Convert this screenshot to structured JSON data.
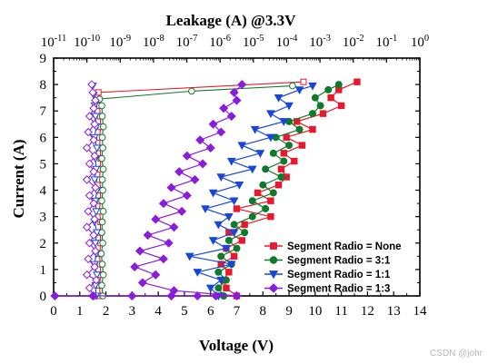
{
  "chart_data": {
    "type": "scatter",
    "top_axis_title": "Leakage (A) @3.3V",
    "top_axis_ticks": [
      {
        "exp": -11,
        "label": "10",
        "sup": "-11"
      },
      {
        "exp": -10,
        "label": "10",
        "sup": "-10"
      },
      {
        "exp": -9,
        "label": "10",
        "sup": "-9"
      },
      {
        "exp": -8,
        "label": "10",
        "sup": "-8"
      },
      {
        "exp": -7,
        "label": "10",
        "sup": "-7"
      },
      {
        "exp": -6,
        "label": "10",
        "sup": "-6"
      },
      {
        "exp": -5,
        "label": "10",
        "sup": "-5"
      },
      {
        "exp": -4,
        "label": "10",
        "sup": "-4"
      },
      {
        "exp": -3,
        "label": "10",
        "sup": "-3"
      },
      {
        "exp": -2,
        "label": "10",
        "sup": "-2"
      },
      {
        "exp": -1,
        "label": "10",
        "sup": "-1"
      },
      {
        "exp": 0,
        "label": "10",
        "sup": "0"
      }
    ],
    "top_axis_scale": "log",
    "top_xlim": [
      1e-11,
      1
    ],
    "xlabel": "Voltage (V)",
    "ylabel": "Current (A)",
    "xlim": [
      0,
      14
    ],
    "ylim": [
      0,
      9
    ],
    "xticks": [
      "0",
      "1",
      "2",
      "3",
      "4",
      "5",
      "6",
      "7",
      "8",
      "9",
      "10",
      "11",
      "12",
      "13",
      "14"
    ],
    "yticks": [
      "0",
      "1",
      "2",
      "3",
      "4",
      "5",
      "6",
      "7",
      "8",
      "9"
    ],
    "legend_position": "bottom-right",
    "series": [
      {
        "name": "Segment Radio = None",
        "color": "#e8192c",
        "marker": "square",
        "iv": [
          [
            7.0,
            0
          ],
          [
            6.6,
            0.3
          ],
          [
            6.5,
            0.6
          ],
          [
            6.7,
            0.9
          ],
          [
            6.4,
            1.2
          ],
          [
            6.9,
            1.5
          ],
          [
            6.6,
            1.8
          ],
          [
            7.2,
            2.1
          ],
          [
            6.7,
            2.4
          ],
          [
            7.3,
            2.7
          ],
          [
            8.3,
            3.0
          ],
          [
            7.0,
            3.3
          ],
          [
            8.3,
            3.6
          ],
          [
            7.8,
            3.9
          ],
          [
            8.6,
            4.2
          ],
          [
            8.9,
            4.5
          ],
          [
            8.7,
            4.8
          ],
          [
            9.2,
            5.1
          ],
          [
            8.8,
            5.4
          ],
          [
            9.5,
            5.7
          ],
          [
            8.9,
            6.0
          ],
          [
            9.9,
            6.3
          ],
          [
            9.3,
            6.6
          ],
          [
            10.3,
            6.9
          ],
          [
            11.0,
            7.2
          ],
          [
            10.6,
            7.5
          ],
          [
            10.9,
            7.8
          ],
          [
            11.6,
            8.1
          ]
        ],
        "leakage": [
          [
            2.5e-10,
            0
          ],
          [
            2.4e-10,
            0.4
          ],
          [
            2.6e-10,
            0.8
          ],
          [
            2.5e-10,
            1.2
          ],
          [
            2.4e-10,
            1.6
          ],
          [
            2.6e-10,
            2.0
          ],
          [
            2.5e-10,
            2.4
          ],
          [
            2.6e-10,
            2.8
          ],
          [
            2.4e-10,
            3.2
          ],
          [
            2.5e-10,
            3.6
          ],
          [
            2.6e-10,
            4.0
          ],
          [
            2.4e-10,
            4.4
          ],
          [
            2.5e-10,
            4.8
          ],
          [
            2.6e-10,
            5.2
          ],
          [
            2.5e-10,
            5.6
          ],
          [
            2.4e-10,
            6.0
          ],
          [
            2.6e-10,
            6.4
          ],
          [
            2.5e-10,
            6.8
          ],
          [
            2.4e-10,
            7.2
          ],
          [
            2.2e-10,
            7.7
          ],
          [
            0.00032,
            8.1
          ]
        ]
      },
      {
        "name": "Segment Radio = 3:1",
        "color": "#0e7a2c",
        "marker": "circle",
        "iv": [
          [
            6.5,
            0
          ],
          [
            6.3,
            0.3
          ],
          [
            6.6,
            0.6
          ],
          [
            6.3,
            0.9
          ],
          [
            6.8,
            1.2
          ],
          [
            6.4,
            1.5
          ],
          [
            7.0,
            1.8
          ],
          [
            6.7,
            2.1
          ],
          [
            7.3,
            2.4
          ],
          [
            6.9,
            2.7
          ],
          [
            7.6,
            3.0
          ],
          [
            8.1,
            3.3
          ],
          [
            7.6,
            3.6
          ],
          [
            8.4,
            3.9
          ],
          [
            8.0,
            4.2
          ],
          [
            8.7,
            4.5
          ],
          [
            8.1,
            4.8
          ],
          [
            8.8,
            5.1
          ],
          [
            8.4,
            5.4
          ],
          [
            9.0,
            5.7
          ],
          [
            8.5,
            6.0
          ],
          [
            9.4,
            6.3
          ],
          [
            9.0,
            6.6
          ],
          [
            9.9,
            6.9
          ],
          [
            10.2,
            7.2
          ],
          [
            10.0,
            7.5
          ],
          [
            10.5,
            7.8
          ],
          [
            10.9,
            8.0
          ]
        ],
        "leakage": [
          [
            3e-10,
            0
          ],
          [
            2.8e-10,
            0.4
          ],
          [
            3.1e-10,
            0.8
          ],
          [
            2.9e-10,
            1.2
          ],
          [
            2.7e-10,
            1.6
          ],
          [
            3e-10,
            2.0
          ],
          [
            2.8e-10,
            2.4
          ],
          [
            2.9e-10,
            2.8
          ],
          [
            3.1e-10,
            3.2
          ],
          [
            2.8e-10,
            3.6
          ],
          [
            3e-10,
            4.0
          ],
          [
            2.9e-10,
            4.4
          ],
          [
            3.1e-10,
            4.8
          ],
          [
            2.8e-10,
            5.2
          ],
          [
            3e-10,
            5.6
          ],
          [
            2.9e-10,
            6.0
          ],
          [
            3.1e-10,
            6.4
          ],
          [
            2.9e-10,
            6.8
          ],
          [
            2.8e-10,
            7.2
          ],
          [
            2.4e-10,
            7.45
          ],
          [
            1.4e-07,
            7.75
          ],
          [
            0.00015,
            7.95
          ]
        ]
      },
      {
        "name": "Segment Radio = 1:1",
        "color": "#1846d8",
        "marker": "triangle-down",
        "iv": [
          [
            6.3,
            0
          ],
          [
            6.0,
            0.3
          ],
          [
            6.4,
            0.6
          ],
          [
            5.5,
            0.9
          ],
          [
            6.8,
            1.2
          ],
          [
            5.2,
            1.5
          ],
          [
            6.6,
            1.8
          ],
          [
            6.1,
            2.1
          ],
          [
            6.9,
            2.4
          ],
          [
            6.3,
            2.7
          ],
          [
            6.7,
            3.0
          ],
          [
            5.8,
            3.3
          ],
          [
            6.9,
            3.6
          ],
          [
            6.1,
            3.9
          ],
          [
            7.1,
            4.2
          ],
          [
            6.4,
            4.5
          ],
          [
            7.6,
            4.8
          ],
          [
            6.8,
            5.1
          ],
          [
            7.9,
            5.4
          ],
          [
            7.2,
            5.7
          ],
          [
            8.3,
            6.0
          ],
          [
            7.7,
            6.3
          ],
          [
            8.8,
            6.6
          ],
          [
            8.3,
            6.9
          ],
          [
            9.0,
            7.2
          ],
          [
            8.6,
            7.5
          ],
          [
            9.4,
            7.8
          ],
          [
            9.9,
            7.95
          ]
        ],
        "leakage": [
          [
            1.9e-10,
            0
          ],
          [
            1.8e-10,
            0.4
          ],
          [
            2e-10,
            0.8
          ],
          [
            1.7e-10,
            1.2
          ],
          [
            1.9e-10,
            1.6
          ],
          [
            1.8e-10,
            2.0
          ],
          [
            2e-10,
            2.4
          ],
          [
            1.7e-10,
            2.8
          ],
          [
            1.9e-10,
            3.2
          ],
          [
            1.8e-10,
            3.6
          ],
          [
            2e-10,
            4.0
          ],
          [
            1.7e-10,
            4.4
          ],
          [
            1.9e-10,
            4.8
          ],
          [
            1.8e-10,
            5.2
          ],
          [
            2e-10,
            5.6
          ],
          [
            1.7e-10,
            6.0
          ],
          [
            1.9e-10,
            6.4
          ],
          [
            1.8e-10,
            6.8
          ],
          [
            1.7e-10,
            7.2
          ],
          [
            1.6e-10,
            7.6
          ],
          [
            1.5e-10,
            7.95
          ]
        ]
      },
      {
        "name": "Segment Radio = 1:3",
        "color": "#8a1cdc",
        "marker": "diamond",
        "iv": [
          [
            0.05,
            0
          ],
          [
            1.5,
            0
          ],
          [
            3.0,
            0
          ],
          [
            4.5,
            0
          ],
          [
            5.5,
            0
          ],
          [
            6.2,
            0
          ],
          [
            7.0,
            0
          ],
          [
            4.6,
            0.2
          ],
          [
            3.4,
            0.5
          ],
          [
            3.9,
            0.8
          ],
          [
            3.1,
            1.1
          ],
          [
            4.2,
            1.4
          ],
          [
            3.3,
            1.7
          ],
          [
            4.4,
            2.0
          ],
          [
            3.6,
            2.3
          ],
          [
            4.6,
            2.6
          ],
          [
            3.9,
            2.9
          ],
          [
            4.9,
            3.2
          ],
          [
            4.2,
            3.5
          ],
          [
            5.1,
            3.8
          ],
          [
            4.5,
            4.1
          ],
          [
            5.4,
            4.4
          ],
          [
            4.8,
            4.7
          ],
          [
            5.7,
            5.0
          ],
          [
            5.1,
            5.3
          ],
          [
            6.0,
            5.6
          ],
          [
            5.6,
            5.9
          ],
          [
            6.4,
            6.2
          ],
          [
            6.1,
            6.5
          ],
          [
            6.8,
            6.8
          ],
          [
            6.5,
            7.1
          ],
          [
            7.0,
            7.4
          ],
          [
            6.9,
            7.7
          ],
          [
            7.2,
            8.0
          ]
        ],
        "leakage": [
          [
            1.6e-10,
            0
          ],
          [
            1.2e-10,
            0.3
          ],
          [
            1.9e-10,
            0.6
          ],
          [
            1e-10,
            0.8
          ],
          [
            1.7e-10,
            1.1
          ],
          [
            1.1e-10,
            1.4
          ],
          [
            1.8e-10,
            1.7
          ],
          [
            1.2e-10,
            2.0
          ],
          [
            1.6e-10,
            2.3
          ],
          [
            1e-10,
            2.6
          ],
          [
            1.7e-10,
            2.9
          ],
          [
            1.1e-10,
            3.2
          ],
          [
            1.6e-10,
            3.5
          ],
          [
            1.2e-10,
            3.8
          ],
          [
            1.8e-10,
            4.1
          ],
          [
            1e-10,
            4.4
          ],
          [
            1.6e-10,
            4.7
          ],
          [
            1.2e-10,
            5.0
          ],
          [
            1.7e-10,
            5.3
          ],
          [
            1e-10,
            5.6
          ],
          [
            1.6e-10,
            5.9
          ],
          [
            1.1e-10,
            6.2
          ],
          [
            1.7e-10,
            6.5
          ],
          [
            1.2e-10,
            6.8
          ],
          [
            1.6e-10,
            7.1
          ],
          [
            1.8e-10,
            7.4
          ],
          [
            1.5e-10,
            7.7
          ],
          [
            1.4e-10,
            8.0
          ]
        ]
      }
    ]
  },
  "watermark": "CSDN @johr"
}
